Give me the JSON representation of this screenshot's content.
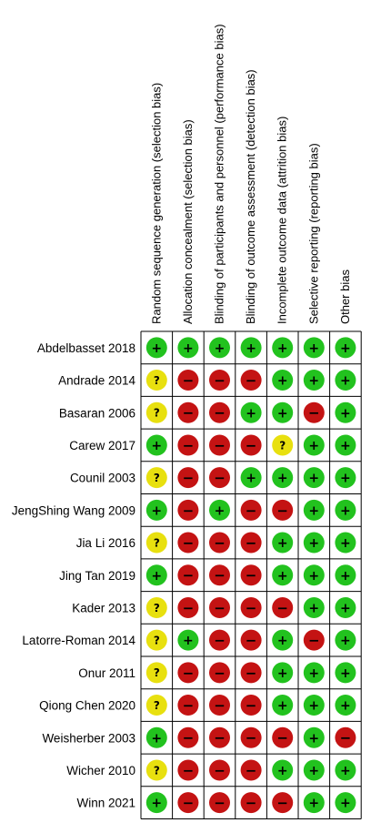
{
  "chart_data": {
    "type": "table",
    "title": "",
    "columns": [
      "Random sequence generation (selection bias)",
      "Allocation concealment (selection bias)",
      "Blinding of participants and personnel (performance bias)",
      "Blinding of outcome assessment (detection bias)",
      "Incomplete outcome data (attrition bias)",
      "Selective reporting (reporting bias)",
      "Other bias"
    ],
    "rows": [
      {
        "study": "Abdelbasset 2018",
        "ratings": [
          "low",
          "low",
          "low",
          "low",
          "low",
          "low",
          "low"
        ]
      },
      {
        "study": "Andrade 2014",
        "ratings": [
          "unclear",
          "high",
          "high",
          "high",
          "low",
          "low",
          "low"
        ]
      },
      {
        "study": "Basaran 2006",
        "ratings": [
          "unclear",
          "high",
          "high",
          "low",
          "low",
          "high",
          "low"
        ]
      },
      {
        "study": "Carew 2017",
        "ratings": [
          "low",
          "high",
          "high",
          "high",
          "unclear",
          "low",
          "low"
        ]
      },
      {
        "study": "Counil 2003",
        "ratings": [
          "unclear",
          "high",
          "high",
          "low",
          "low",
          "low",
          "low"
        ]
      },
      {
        "study": "JengShing Wang 2009",
        "ratings": [
          "low",
          "high",
          "low",
          "high",
          "high",
          "low",
          "low"
        ]
      },
      {
        "study": "Jia Li 2016",
        "ratings": [
          "unclear",
          "high",
          "high",
          "high",
          "low",
          "low",
          "low"
        ]
      },
      {
        "study": "Jing Tan 2019",
        "ratings": [
          "low",
          "high",
          "high",
          "high",
          "low",
          "low",
          "low"
        ]
      },
      {
        "study": "Kader 2013",
        "ratings": [
          "unclear",
          "high",
          "high",
          "high",
          "high",
          "low",
          "low"
        ]
      },
      {
        "study": "Latorre-Roman 2014",
        "ratings": [
          "unclear",
          "low",
          "high",
          "high",
          "low",
          "high",
          "low"
        ]
      },
      {
        "study": "Onur 2011",
        "ratings": [
          "unclear",
          "high",
          "high",
          "high",
          "low",
          "low",
          "low"
        ]
      },
      {
        "study": "Qiong Chen 2020",
        "ratings": [
          "unclear",
          "high",
          "high",
          "high",
          "low",
          "low",
          "low"
        ]
      },
      {
        "study": "Weisherber 2003",
        "ratings": [
          "low",
          "high",
          "high",
          "high",
          "high",
          "low",
          "high"
        ]
      },
      {
        "study": "Wicher 2010",
        "ratings": [
          "unclear",
          "high",
          "high",
          "high",
          "low",
          "low",
          "low"
        ]
      },
      {
        "study": "Winn 2021",
        "ratings": [
          "low",
          "high",
          "high",
          "high",
          "high",
          "low",
          "low"
        ]
      }
    ],
    "legend": {
      "low": {
        "symbol": "+",
        "color": "#22c21e"
      },
      "unclear": {
        "symbol": "?",
        "color": "#e8e00f"
      },
      "high": {
        "symbol": "−",
        "color": "#c41313"
      }
    },
    "grid": true
  }
}
